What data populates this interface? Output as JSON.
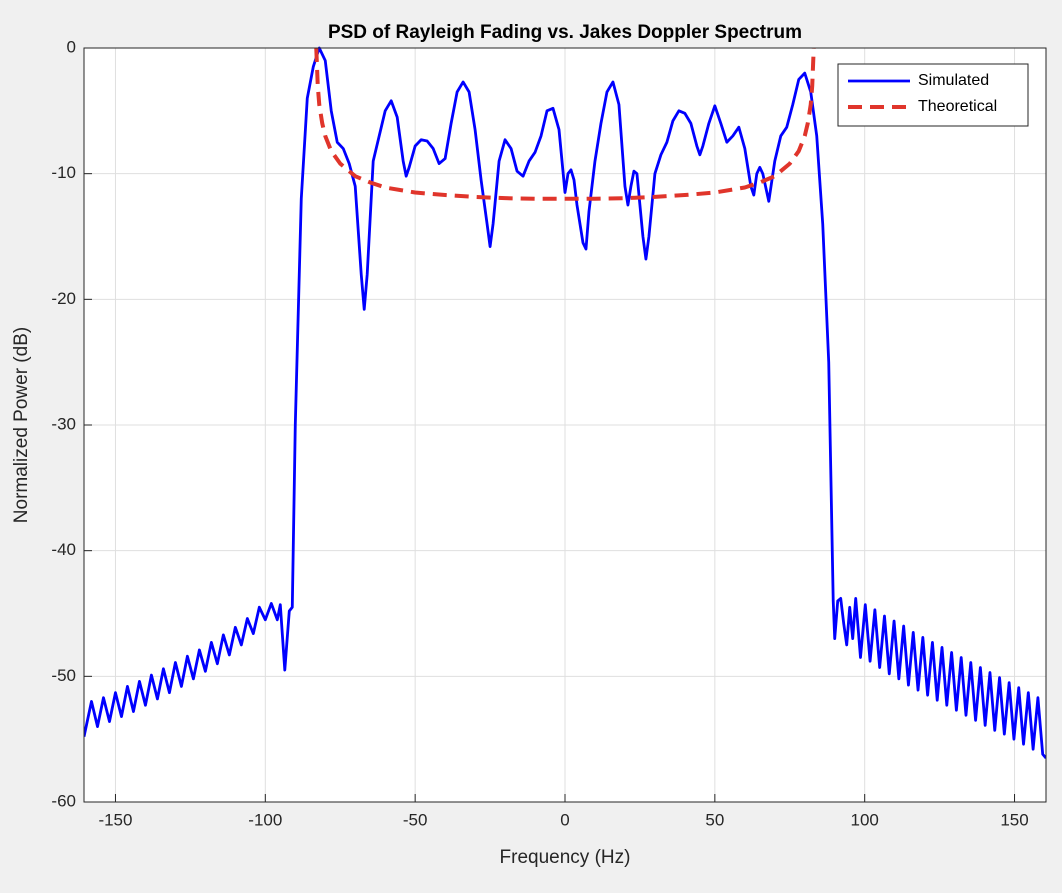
{
  "chart_data": {
    "type": "line",
    "title": "PSD of Rayleigh Fading vs. Jakes Doppler Spectrum",
    "xlabel": "Frequency (Hz)",
    "ylabel": "Normalized Power (dB)",
    "xlim": [
      -160.5,
      160.5
    ],
    "ylim": [
      -60,
      0
    ],
    "xticks": [
      -150,
      -100,
      -50,
      0,
      50,
      100,
      150
    ],
    "yticks": [
      -60,
      -50,
      -40,
      -30,
      -20,
      -10,
      0
    ],
    "grid": true,
    "legend": "northeast",
    "series": [
      {
        "name": "Simulated",
        "color": "#0000ff",
        "dash": false,
        "x": [
          -160.5,
          -158,
          -156,
          -154,
          -152,
          -150,
          -148,
          -146,
          -144,
          -142,
          -140,
          -138,
          -136,
          -134,
          -132,
          -130,
          -128,
          -126,
          -124,
          -122,
          -120,
          -118,
          -116,
          -114,
          -112,
          -110,
          -108,
          -106,
          -104,
          -102,
          -100,
          -98,
          -96,
          -95,
          -93.5,
          -92,
          -91,
          -90,
          -88,
          -86,
          -84,
          -82,
          -80,
          -78,
          -76,
          -74,
          -72,
          -70,
          -68,
          -67,
          -66,
          -64,
          -62,
          -60,
          -58,
          -56,
          -54,
          -53,
          -52,
          -50,
          -48,
          -46,
          -44,
          -42,
          -40,
          -38,
          -36,
          -34,
          -32,
          -30,
          -28,
          -26,
          -25,
          -24,
          -22,
          -20,
          -18,
          -16,
          -14,
          -12,
          -10,
          -8,
          -6,
          -4,
          -2,
          0,
          1,
          2,
          3,
          4,
          6,
          7,
          8,
          10,
          12,
          14,
          16,
          18,
          20,
          21,
          22,
          23,
          24,
          26,
          27,
          28,
          30,
          32,
          34,
          36,
          38,
          40,
          42,
          44,
          45,
          46,
          48,
          50,
          52,
          54,
          56,
          58,
          60,
          62,
          63,
          64,
          65,
          66,
          68,
          70,
          72,
          74,
          76,
          78,
          80,
          82,
          84,
          86,
          88,
          89.5,
          90,
          91,
          92,
          93,
          94,
          95,
          96,
          97,
          98.6,
          100.2,
          101.8,
          103.4,
          105,
          106.6,
          108.2,
          109.8,
          111.4,
          113,
          114.6,
          116.2,
          117.8,
          119.4,
          121,
          122.6,
          124.2,
          125.8,
          127.4,
          129,
          130.6,
          132.2,
          133.8,
          135.4,
          137,
          138.6,
          140.2,
          141.8,
          143.4,
          145,
          146.6,
          148.2,
          149.8,
          151.4,
          153,
          154.6,
          156.2,
          157.8,
          159.4,
          160.5
        ],
        "values": [
          -54.8,
          -52.0,
          -54.0,
          -51.7,
          -53.6,
          -51.3,
          -53.2,
          -50.8,
          -52.8,
          -50.4,
          -52.3,
          -49.9,
          -51.8,
          -49.4,
          -51.3,
          -48.9,
          -50.8,
          -48.4,
          -50.2,
          -47.9,
          -49.6,
          -47.3,
          -49.0,
          -46.7,
          -48.3,
          -46.1,
          -47.5,
          -45.4,
          -46.6,
          -44.5,
          -45.5,
          -44.2,
          -45.5,
          -44.3,
          -49.5,
          -44.8,
          -44.5,
          -30,
          -12,
          -4,
          -1.5,
          0,
          -1,
          -5,
          -7.5,
          -8,
          -9.2,
          -11,
          -18,
          -20.8,
          -18,
          -9,
          -7,
          -5,
          -4.2,
          -5.5,
          -9,
          -10.2,
          -9.5,
          -7.8,
          -7.3,
          -7.4,
          -8,
          -9.2,
          -8.8,
          -6,
          -3.5,
          -2.7,
          -3.5,
          -6.5,
          -10.5,
          -14,
          -15.8,
          -14,
          -9,
          -7.3,
          -8,
          -9.8,
          -10.2,
          -9,
          -8.3,
          -7,
          -5,
          -4.8,
          -6.5,
          -11.5,
          -10,
          -9.7,
          -10.5,
          -12.5,
          -15.5,
          -16,
          -13,
          -9,
          -6,
          -3.5,
          -2.7,
          -4.5,
          -11,
          -12.5,
          -11,
          -9.8,
          -10,
          -15,
          -16.8,
          -15,
          -10,
          -8.5,
          -7.5,
          -5.8,
          -5,
          -5.2,
          -6,
          -7.8,
          -8.5,
          -7.8,
          -6,
          -4.6,
          -6,
          -7.5,
          -7,
          -6.3,
          -8,
          -11,
          -11.7,
          -10,
          -9.5,
          -10,
          -12.2,
          -9,
          -7,
          -6.3,
          -4.5,
          -2.5,
          -2,
          -3.5,
          -7,
          -14,
          -25,
          -44,
          -47,
          -44,
          -43.8,
          -45.8,
          -47.5,
          -44.5,
          -47,
          -43.8,
          -48.5,
          -44.3,
          -48.8,
          -44.7,
          -49.3,
          -45.2,
          -49.8,
          -45.6,
          -50.2,
          -46,
          -50.7,
          -46.5,
          -51.1,
          -46.9,
          -51.5,
          -47.3,
          -51.9,
          -47.7,
          -52.3,
          -48.1,
          -52.7,
          -48.5,
          -53.1,
          -48.9,
          -53.5,
          -49.3,
          -53.9,
          -49.7,
          -54.3,
          -50.1,
          -54.6,
          -50.5,
          -55,
          -50.9,
          -55.4,
          -51.3,
          -55.8,
          -51.7,
          -56.2,
          -56.5
        ]
      },
      {
        "name": "Theoretical",
        "color": "#e0352b",
        "dash": true,
        "x": [
          -83,
          -82.5,
          -82,
          -81,
          -80,
          -78,
          -75,
          -70,
          -65,
          -60,
          -50,
          -40,
          -30,
          -20,
          -10,
          0,
          10,
          20,
          30,
          40,
          50,
          60,
          65,
          70,
          75,
          78,
          80,
          81,
          82,
          82.5,
          83
        ],
        "values": [
          0,
          -3,
          -4.5,
          -6,
          -7,
          -8.2,
          -9.2,
          -10.2,
          -10.7,
          -11.1,
          -11.5,
          -11.7,
          -11.85,
          -11.95,
          -12,
          -12,
          -12,
          -11.95,
          -11.85,
          -11.7,
          -11.5,
          -11.1,
          -10.7,
          -10.2,
          -9.2,
          -8.2,
          -7,
          -6,
          -4.5,
          -3,
          0
        ]
      }
    ]
  }
}
